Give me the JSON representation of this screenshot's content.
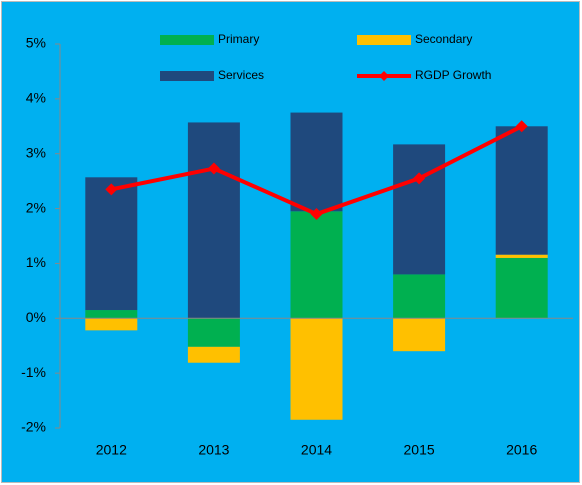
{
  "chart_data": {
    "type": "bar-line",
    "categories": [
      "2012",
      "2013",
      "2014",
      "2015",
      "2016"
    ],
    "series": [
      {
        "name": "Primary",
        "color": "#00b050",
        "type": "bar",
        "values": [
          0.15,
          -0.52,
          1.95,
          0.8,
          1.1
        ]
      },
      {
        "name": "Secondary",
        "color": "#ffc000",
        "type": "bar",
        "values": [
          -0.22,
          -0.29,
          -1.85,
          -0.6,
          0.06
        ]
      },
      {
        "name": "Services",
        "color": "#1f497d",
        "type": "bar",
        "values": [
          2.42,
          3.57,
          1.8,
          2.37,
          2.34
        ]
      },
      {
        "name": "RGDP Growth",
        "color": "#ff0000",
        "type": "line",
        "values": [
          2.35,
          2.73,
          1.9,
          2.55,
          3.5
        ]
      }
    ],
    "ylim": [
      -2,
      5
    ],
    "yticks": [
      {
        "value": -2,
        "label": "-2%"
      },
      {
        "value": -1,
        "label": "-1%"
      },
      {
        "value": 0,
        "label": "0%"
      },
      {
        "value": 1,
        "label": "1%"
      },
      {
        "value": 2,
        "label": "2%"
      },
      {
        "value": 3,
        "label": "3%"
      },
      {
        "value": 4,
        "label": "4%"
      },
      {
        "value": 5,
        "label": "5%"
      }
    ],
    "background": "#00b0f0"
  }
}
